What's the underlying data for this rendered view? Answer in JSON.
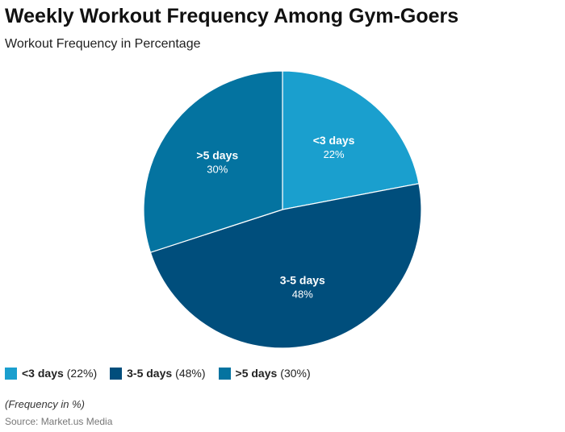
{
  "chart_data": {
    "type": "pie",
    "title": "Weekly Workout Frequency Among Gym-Goers",
    "subtitle": "Workout Frequency in Percentage",
    "categories": [
      "<3 days",
      "3-5 days",
      ">5 days"
    ],
    "values": [
      22,
      48,
      30
    ],
    "unit": "%",
    "slice_labels": [
      "22%",
      "48%",
      "30%"
    ],
    "colors": [
      "#1a9fce",
      "#004e7c",
      "#0473a0"
    ],
    "legend": [
      "(22%)",
      "(48%)",
      "(30%)"
    ],
    "legend_position": "bottom-left"
  },
  "footer": {
    "note": "(Frequency in %)",
    "source": "Source: Market.us Media"
  }
}
